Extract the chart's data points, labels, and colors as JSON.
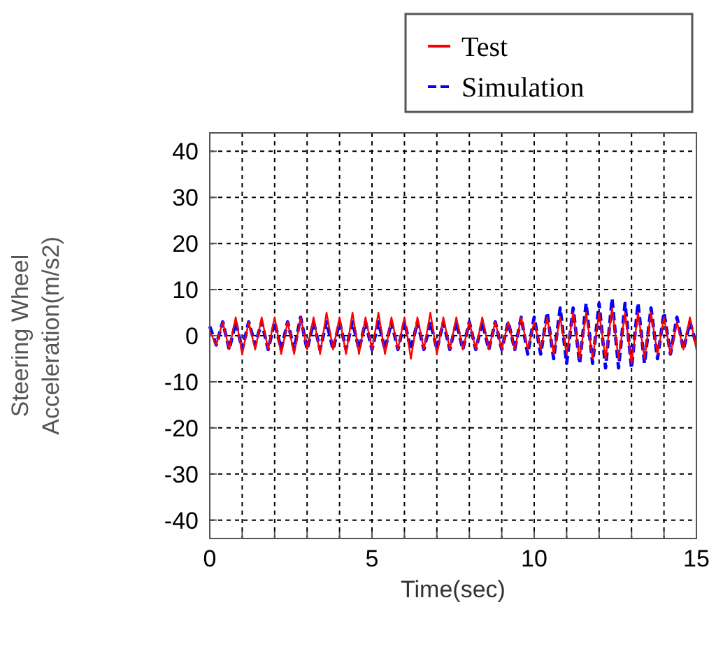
{
  "chart_data": {
    "type": "line",
    "xlabel": "Time(sec)",
    "ylabel": "Steering Wheel\nAcceleration(m/s2)",
    "xlim": [
      0,
      15
    ],
    "ylim": [
      -44,
      44
    ],
    "xticks": [
      0,
      {
        "value": 1,
        "label": null
      },
      {
        "value": 2,
        "label": null
      },
      {
        "value": 3,
        "label": null
      },
      {
        "value": 4,
        "label": null
      },
      5,
      {
        "value": 6,
        "label": null
      },
      {
        "value": 7,
        "label": null
      },
      {
        "value": 8,
        "label": null
      },
      {
        "value": 9,
        "label": null
      },
      10,
      {
        "value": 11,
        "label": null
      },
      {
        "value": 12,
        "label": null
      },
      {
        "value": 13,
        "label": null
      },
      {
        "value": 14,
        "label": null
      },
      15
    ],
    "yticks": [
      -40,
      -30,
      -20,
      -10,
      0,
      10,
      20,
      30,
      40
    ],
    "grid": true,
    "legend": "top right",
    "marker": "none",
    "x": [
      0,
      0.2,
      0.4,
      0.6,
      0.8,
      1,
      1.2,
      1.4,
      1.6,
      1.8,
      2,
      2.2,
      2.4,
      2.6,
      2.8,
      3,
      3.2,
      3.4,
      3.6,
      3.8,
      4,
      4.2,
      4.4,
      4.6,
      4.8,
      5,
      5.2,
      5.4,
      5.6,
      5.8,
      6,
      6.2,
      6.4,
      6.6,
      6.8,
      7,
      7.2,
      7.4,
      7.6,
      7.8,
      8,
      8.2,
      8.4,
      8.6,
      8.8,
      9,
      9.2,
      9.4,
      9.6,
      9.8,
      10,
      10.2,
      10.4,
      10.6,
      10.8,
      11,
      11.2,
      11.4,
      11.6,
      11.8,
      12,
      12.2,
      12.4,
      12.6,
      12.8,
      13,
      13.2,
      13.4,
      13.6,
      13.8,
      14,
      14.2,
      14.4,
      14.6,
      14.8,
      15
    ],
    "series": [
      {
        "name": "Simulation",
        "color": "#0000ff",
        "line_style": "dashed",
        "values": [
          2,
          -2,
          3,
          -3,
          3,
          -3,
          3,
          -2,
          3,
          -3,
          3,
          -3,
          3,
          -3,
          4,
          -3,
          3,
          -3,
          3,
          -3,
          3,
          -3,
          3,
          -3,
          3,
          -3,
          3,
          -3,
          3,
          -3,
          3,
          -3,
          3,
          -3,
          3,
          -3,
          3,
          -3,
          3,
          -3,
          3,
          -3,
          3,
          -3,
          3,
          -3,
          3,
          -3,
          4,
          -4,
          4,
          -4,
          5,
          -5,
          6,
          -6,
          6,
          -6,
          7,
          -6,
          7,
          -7,
          8,
          -7,
          7,
          -7,
          7,
          -6,
          6,
          -5,
          5,
          -4,
          4,
          -3,
          3,
          -2
        ]
      },
      {
        "name": "Test",
        "color": "#ff0000",
        "line_style": "solid",
        "values": [
          1,
          -2,
          3,
          -3,
          4,
          -4,
          3,
          -3,
          4,
          -3,
          4,
          -4,
          3,
          -4,
          4,
          -3,
          4,
          -4,
          5,
          -3,
          4,
          -4,
          5,
          -4,
          4,
          -3,
          5,
          -4,
          4,
          -3,
          4,
          -5,
          4,
          -3,
          5,
          -4,
          4,
          -3,
          4,
          -3,
          3,
          -3,
          4,
          -3,
          3,
          -3,
          3,
          -3,
          4,
          -3,
          3,
          -3,
          4,
          -4,
          4,
          -4,
          5,
          -5,
          5,
          -5,
          5,
          -5,
          6,
          -5,
          5,
          -6,
          5,
          -5,
          5,
          -4,
          4,
          -4,
          3,
          -3,
          4,
          -3
        ]
      }
    ]
  }
}
